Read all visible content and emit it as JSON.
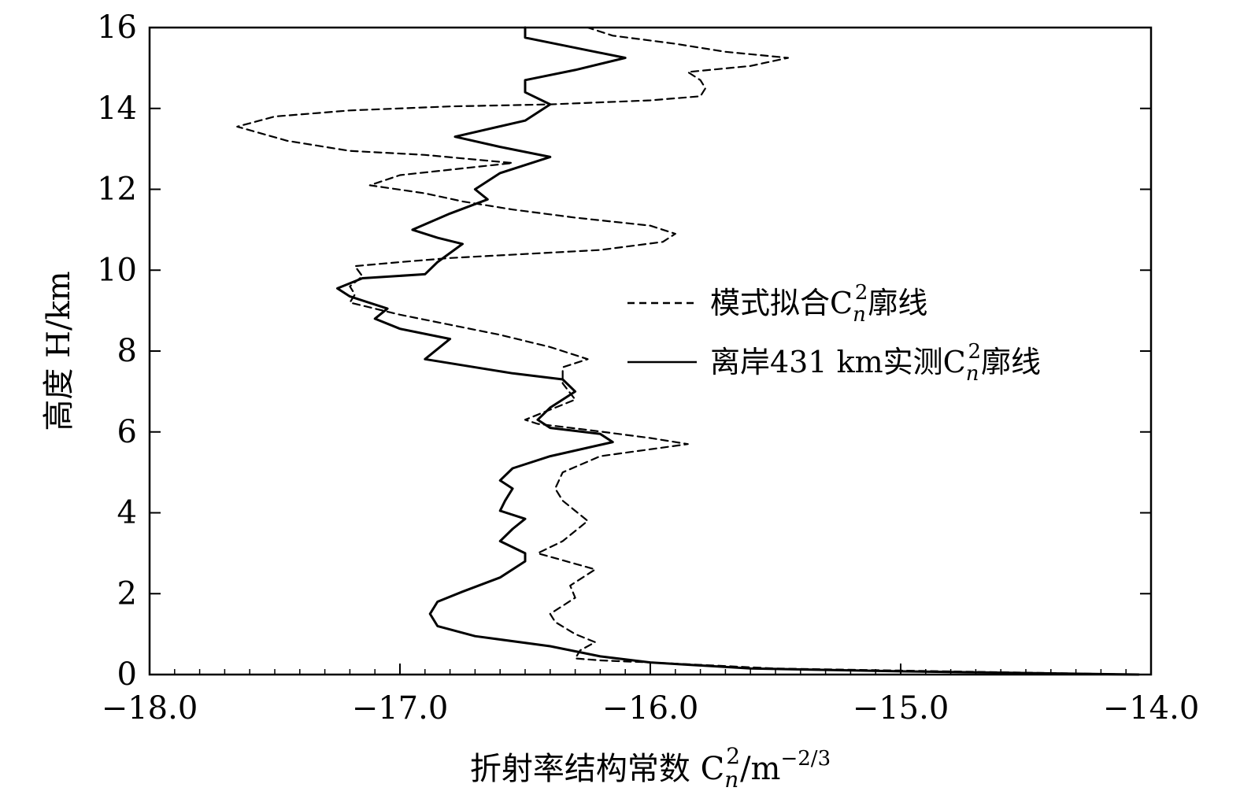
{
  "chart_data": {
    "type": "line",
    "xlabel": "折射率结构常数 C",
    "xlabel_sub": "n",
    "xlabel_sup": "2",
    "xlabel_unit": "/m",
    "xlabel_unit_sup": "−2/3",
    "ylabel": "高度 H/km",
    "xlim": [
      -18.0,
      -14.0
    ],
    "ylim": [
      0,
      16
    ],
    "x_ticks": [
      "−18.0",
      "−17.0",
      "−16.0",
      "−15.0",
      "−14.0"
    ],
    "y_ticks": [
      "0",
      "2",
      "4",
      "6",
      "8",
      "10",
      "12",
      "14",
      "16"
    ],
    "grid": false,
    "legend_position": "right",
    "series": [
      {
        "name": "模式拟合C²廓线",
        "name_main": "模式拟合C",
        "name_sub": "n",
        "name_sup": "2",
        "name_tail": "廓线",
        "style": "dashed",
        "color": "#000000",
        "points": [
          [
            -14.05,
            0.0
          ],
          [
            -15.0,
            0.1
          ],
          [
            -15.5,
            0.15
          ],
          [
            -16.0,
            0.3
          ],
          [
            -16.2,
            0.35
          ],
          [
            -16.3,
            0.4
          ],
          [
            -16.28,
            0.6
          ],
          [
            -16.22,
            0.8
          ],
          [
            -16.3,
            1.0
          ],
          [
            -16.38,
            1.3
          ],
          [
            -16.4,
            1.5
          ],
          [
            -16.35,
            1.7
          ],
          [
            -16.3,
            1.9
          ],
          [
            -16.32,
            2.2
          ],
          [
            -16.22,
            2.6
          ],
          [
            -16.45,
            3.0
          ],
          [
            -16.35,
            3.3
          ],
          [
            -16.25,
            3.8
          ],
          [
            -16.35,
            4.3
          ],
          [
            -16.38,
            4.6
          ],
          [
            -16.35,
            5.0
          ],
          [
            -16.2,
            5.4
          ],
          [
            -15.85,
            5.7
          ],
          [
            -16.0,
            5.85
          ],
          [
            -16.25,
            6.05
          ],
          [
            -16.45,
            6.2
          ],
          [
            -16.5,
            6.3
          ],
          [
            -16.4,
            6.55
          ],
          [
            -16.3,
            6.8
          ],
          [
            -16.35,
            7.2
          ],
          [
            -16.35,
            7.6
          ],
          [
            -16.25,
            7.8
          ],
          [
            -16.4,
            8.1
          ],
          [
            -16.6,
            8.4
          ],
          [
            -16.8,
            8.65
          ],
          [
            -17.0,
            8.9
          ],
          [
            -17.2,
            9.2
          ],
          [
            -17.18,
            9.4
          ],
          [
            -17.2,
            9.6
          ],
          [
            -17.15,
            9.85
          ],
          [
            -17.18,
            10.1
          ],
          [
            -17.0,
            10.2
          ],
          [
            -16.8,
            10.3
          ],
          [
            -16.5,
            10.4
          ],
          [
            -16.2,
            10.5
          ],
          [
            -15.95,
            10.7
          ],
          [
            -15.9,
            10.9
          ],
          [
            -16.0,
            11.1
          ],
          [
            -16.3,
            11.3
          ],
          [
            -16.55,
            11.5
          ],
          [
            -16.75,
            11.7
          ],
          [
            -16.9,
            11.9
          ],
          [
            -17.12,
            12.1
          ],
          [
            -17.0,
            12.35
          ],
          [
            -16.7,
            12.55
          ],
          [
            -16.55,
            12.65
          ],
          [
            -16.9,
            12.85
          ],
          [
            -17.2,
            12.95
          ],
          [
            -17.45,
            13.2
          ],
          [
            -17.65,
            13.55
          ],
          [
            -17.5,
            13.8
          ],
          [
            -17.2,
            13.95
          ],
          [
            -16.8,
            14.05
          ],
          [
            -16.4,
            14.1
          ],
          [
            -16.0,
            14.2
          ],
          [
            -15.8,
            14.3
          ],
          [
            -15.78,
            14.5
          ],
          [
            -15.8,
            14.7
          ],
          [
            -15.85,
            14.9
          ],
          [
            -15.6,
            15.05
          ],
          [
            -15.45,
            15.25
          ],
          [
            -15.7,
            15.4
          ],
          [
            -15.9,
            15.6
          ],
          [
            -16.15,
            15.8
          ],
          [
            -16.25,
            16.0
          ]
        ]
      },
      {
        "name": "离岸431 km实测C²廓线",
        "name_main": "离岸431 km实测C",
        "name_sub": "n",
        "name_sup": "2",
        "name_tail": "廓线",
        "style": "solid",
        "color": "#000000",
        "points": [
          [
            -14.05,
            0.0
          ],
          [
            -15.0,
            0.08
          ],
          [
            -15.6,
            0.15
          ],
          [
            -16.0,
            0.3
          ],
          [
            -16.2,
            0.45
          ],
          [
            -16.4,
            0.7
          ],
          [
            -16.7,
            0.95
          ],
          [
            -16.85,
            1.2
          ],
          [
            -16.88,
            1.5
          ],
          [
            -16.85,
            1.8
          ],
          [
            -16.75,
            2.05
          ],
          [
            -16.6,
            2.4
          ],
          [
            -16.5,
            2.8
          ],
          [
            -16.5,
            3.0
          ],
          [
            -16.6,
            3.3
          ],
          [
            -16.55,
            3.6
          ],
          [
            -16.5,
            3.85
          ],
          [
            -16.6,
            4.05
          ],
          [
            -16.58,
            4.3
          ],
          [
            -16.55,
            4.6
          ],
          [
            -16.6,
            4.8
          ],
          [
            -16.55,
            5.1
          ],
          [
            -16.4,
            5.4
          ],
          [
            -16.15,
            5.75
          ],
          [
            -16.2,
            5.95
          ],
          [
            -16.4,
            6.1
          ],
          [
            -16.45,
            6.3
          ],
          [
            -16.4,
            6.6
          ],
          [
            -16.3,
            7.0
          ],
          [
            -16.35,
            7.3
          ],
          [
            -16.55,
            7.45
          ],
          [
            -16.9,
            7.8
          ],
          [
            -16.8,
            8.3
          ],
          [
            -17.0,
            8.55
          ],
          [
            -17.1,
            8.8
          ],
          [
            -17.05,
            9.05
          ],
          [
            -17.2,
            9.35
          ],
          [
            -17.25,
            9.55
          ],
          [
            -17.15,
            9.8
          ],
          [
            -16.9,
            9.9
          ],
          [
            -16.85,
            10.2
          ],
          [
            -16.75,
            10.65
          ],
          [
            -16.85,
            10.8
          ],
          [
            -16.95,
            11.0
          ],
          [
            -16.8,
            11.4
          ],
          [
            -16.65,
            11.75
          ],
          [
            -16.7,
            12.0
          ],
          [
            -16.6,
            12.4
          ],
          [
            -16.4,
            12.8
          ],
          [
            -16.6,
            13.05
          ],
          [
            -16.78,
            13.3
          ],
          [
            -16.5,
            13.7
          ],
          [
            -16.4,
            14.1
          ],
          [
            -16.5,
            14.4
          ],
          [
            -16.5,
            14.7
          ],
          [
            -16.3,
            14.95
          ],
          [
            -16.1,
            15.25
          ],
          [
            -16.3,
            15.5
          ],
          [
            -16.5,
            15.75
          ],
          [
            -16.5,
            16.0
          ]
        ]
      }
    ]
  }
}
